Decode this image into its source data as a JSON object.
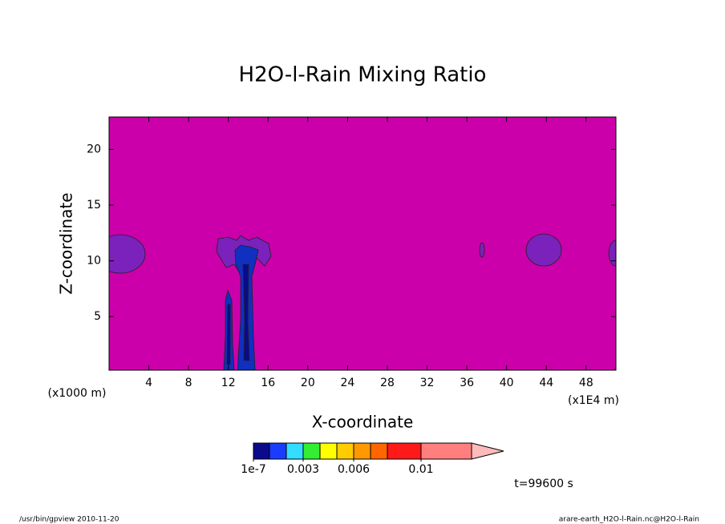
{
  "chart_data": {
    "type": "contour",
    "title": "H2O-l-Rain Mixing Ratio",
    "x_label": "X-coordinate",
    "y_label": "Z-coordinate",
    "x_unit": "(x1E4 m)",
    "y_unit": "(x1000 m)",
    "xlim": [
      0,
      51
    ],
    "ylim": [
      0.2,
      22.9
    ],
    "xticks": [
      4,
      8,
      12,
      16,
      20,
      24,
      28,
      32,
      36,
      40,
      44,
      48
    ],
    "yticks": [
      5,
      10,
      15,
      20
    ],
    "background_color": "#cc00aa",
    "colorbar": {
      "colors": [
        "#0a0a8c",
        "#1a3cff",
        "#33ddff",
        "#33ee33",
        "#ffff00",
        "#ffcc00",
        "#ff9900",
        "#ff6600",
        "#ff1a1a",
        "#ff7f7f"
      ],
      "extend_color": "#ffbbbb",
      "ticks": [
        {
          "value": 1e-07,
          "label": "1e-7"
        },
        0.003,
        0.006,
        0.01
      ]
    },
    "time_label": "t=99600 s"
  },
  "footer": {
    "left": "/usr/bin/gpview  2010-11-20",
    "right": "arare-earth_H2O-l-Rain.nc@H2O-l-Rain"
  }
}
